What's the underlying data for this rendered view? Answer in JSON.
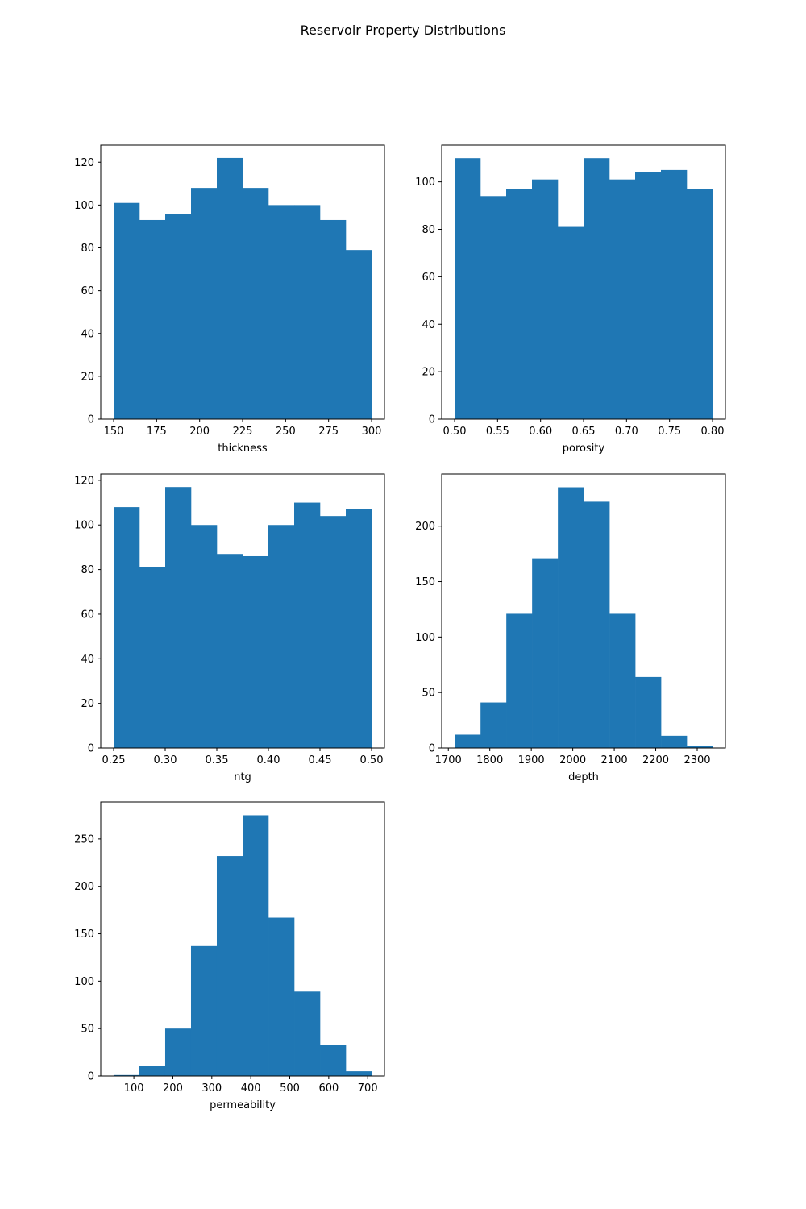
{
  "title": "Reservoir Property Distributions",
  "bar_color": "#1f77b4",
  "chart_data": [
    {
      "type": "bar",
      "subtype": "histogram",
      "xlabel": "thickness",
      "ylabel": "",
      "bin_range": [
        150,
        300
      ],
      "counts": [
        101,
        93,
        96,
        108,
        122,
        108,
        100,
        100,
        93,
        79
      ],
      "xlim": [
        142.5,
        307.5
      ],
      "ylim": [
        0,
        128
      ],
      "xticks": [
        150,
        175,
        200,
        225,
        250,
        275,
        300
      ],
      "xtick_labels": [
        "150",
        "175",
        "200",
        "225",
        "250",
        "275",
        "300"
      ],
      "yticks": [
        0,
        20,
        40,
        60,
        80,
        100,
        120
      ],
      "ytick_labels": [
        "0",
        "20",
        "40",
        "60",
        "80",
        "100",
        "120"
      ],
      "grid": false
    },
    {
      "type": "bar",
      "subtype": "histogram",
      "xlabel": "porosity",
      "ylabel": "",
      "bin_range": [
        0.5,
        0.8
      ],
      "counts": [
        110,
        94,
        97,
        101,
        81,
        110,
        101,
        104,
        105,
        97
      ],
      "xlim": [
        0.485,
        0.815
      ],
      "ylim": [
        0,
        115.5
      ],
      "xticks": [
        0.5,
        0.55,
        0.6,
        0.65,
        0.7,
        0.75,
        0.8
      ],
      "xtick_labels": [
        "0.50",
        "0.55",
        "0.60",
        "0.65",
        "0.70",
        "0.75",
        "0.80"
      ],
      "yticks": [
        0,
        20,
        40,
        60,
        80,
        100
      ],
      "ytick_labels": [
        "0",
        "20",
        "40",
        "60",
        "80",
        "100"
      ],
      "grid": false
    },
    {
      "type": "bar",
      "subtype": "histogram",
      "xlabel": "ntg",
      "ylabel": "",
      "bin_range": [
        0.25,
        0.5
      ],
      "counts": [
        108,
        81,
        117,
        100,
        87,
        86,
        100,
        110,
        104,
        107
      ],
      "xlim": [
        0.2375,
        0.5125
      ],
      "ylim": [
        0,
        122.85
      ],
      "xticks": [
        0.25,
        0.3,
        0.35,
        0.4,
        0.45,
        0.5
      ],
      "xtick_labels": [
        "0.25",
        "0.30",
        "0.35",
        "0.40",
        "0.45",
        "0.50"
      ],
      "yticks": [
        0,
        20,
        40,
        60,
        80,
        100,
        120
      ],
      "ytick_labels": [
        "0",
        "20",
        "40",
        "60",
        "80",
        "100",
        "120"
      ],
      "grid": false
    },
    {
      "type": "bar",
      "subtype": "histogram",
      "xlabel": "depth",
      "ylabel": "",
      "bin_range": [
        1715.5,
        2337
      ],
      "counts": [
        12,
        41,
        121,
        171,
        235,
        222,
        121,
        64,
        11,
        2
      ],
      "xlim": [
        1684,
        2368
      ],
      "ylim": [
        0,
        247
      ],
      "xticks": [
        1700,
        1800,
        1900,
        2000,
        2100,
        2200,
        2300
      ],
      "xtick_labels": [
        "1700",
        "1800",
        "1900",
        "2000",
        "2100",
        "2200",
        "2300"
      ],
      "yticks": [
        0,
        50,
        100,
        150,
        200
      ],
      "ytick_labels": [
        "0",
        "50",
        "100",
        "150",
        "200"
      ],
      "grid": false
    },
    {
      "type": "bar",
      "subtype": "histogram",
      "xlabel": "permeability",
      "ylabel": "",
      "bin_range": [
        48,
        710
      ],
      "counts": [
        1,
        11,
        50,
        137,
        232,
        275,
        167,
        89,
        33,
        5
      ],
      "xlim": [
        15,
        743
      ],
      "ylim": [
        0,
        289
      ],
      "xticks": [
        100,
        200,
        300,
        400,
        500,
        600,
        700
      ],
      "xtick_labels": [
        "100",
        "200",
        "300",
        "400",
        "500",
        "600",
        "700"
      ],
      "yticks": [
        0,
        50,
        100,
        150,
        200,
        250
      ],
      "ytick_labels": [
        "0",
        "50",
        "100",
        "150",
        "200",
        "250"
      ],
      "grid": false
    }
  ]
}
